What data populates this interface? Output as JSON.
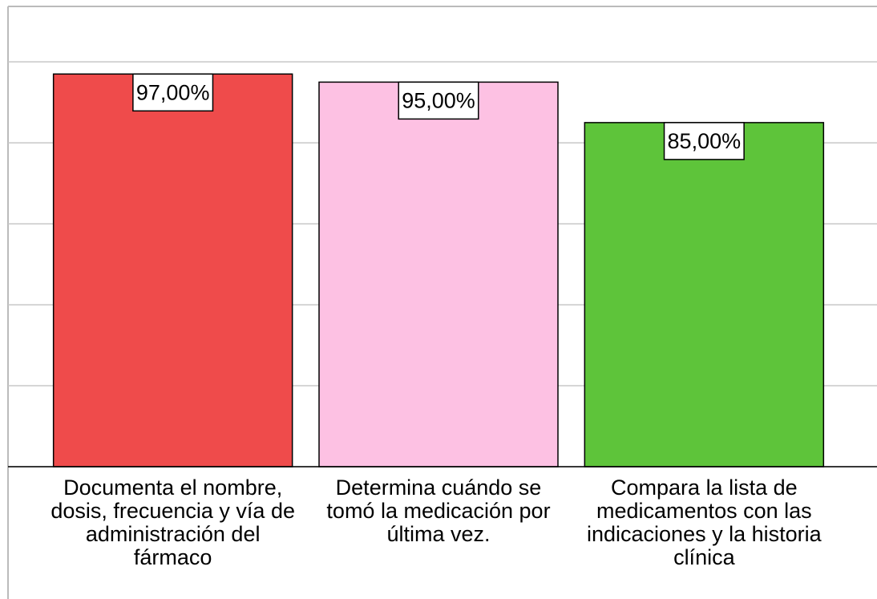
{
  "chart_data": {
    "type": "bar",
    "categories": [
      "Documenta el nombre,\ndosis, frecuencia y vía de\nadministración del\nfármaco",
      "Determina cuándo se\ntomó la medicación por\núltima vez.",
      "Compara la lista de\nmedicamentos con las\nindicaciones y la historia\nclínica"
    ],
    "values": [
      97,
      95,
      85
    ],
    "value_labels": [
      "97,00%",
      "95,00%",
      "85,00%"
    ],
    "colors": [
      "#ef4b4b",
      "#fdc1e3",
      "#5ec43a"
    ],
    "ylim": [
      0,
      113.7
    ],
    "yticks": [
      0,
      20,
      40,
      60,
      80,
      100
    ],
    "grid": true
  }
}
